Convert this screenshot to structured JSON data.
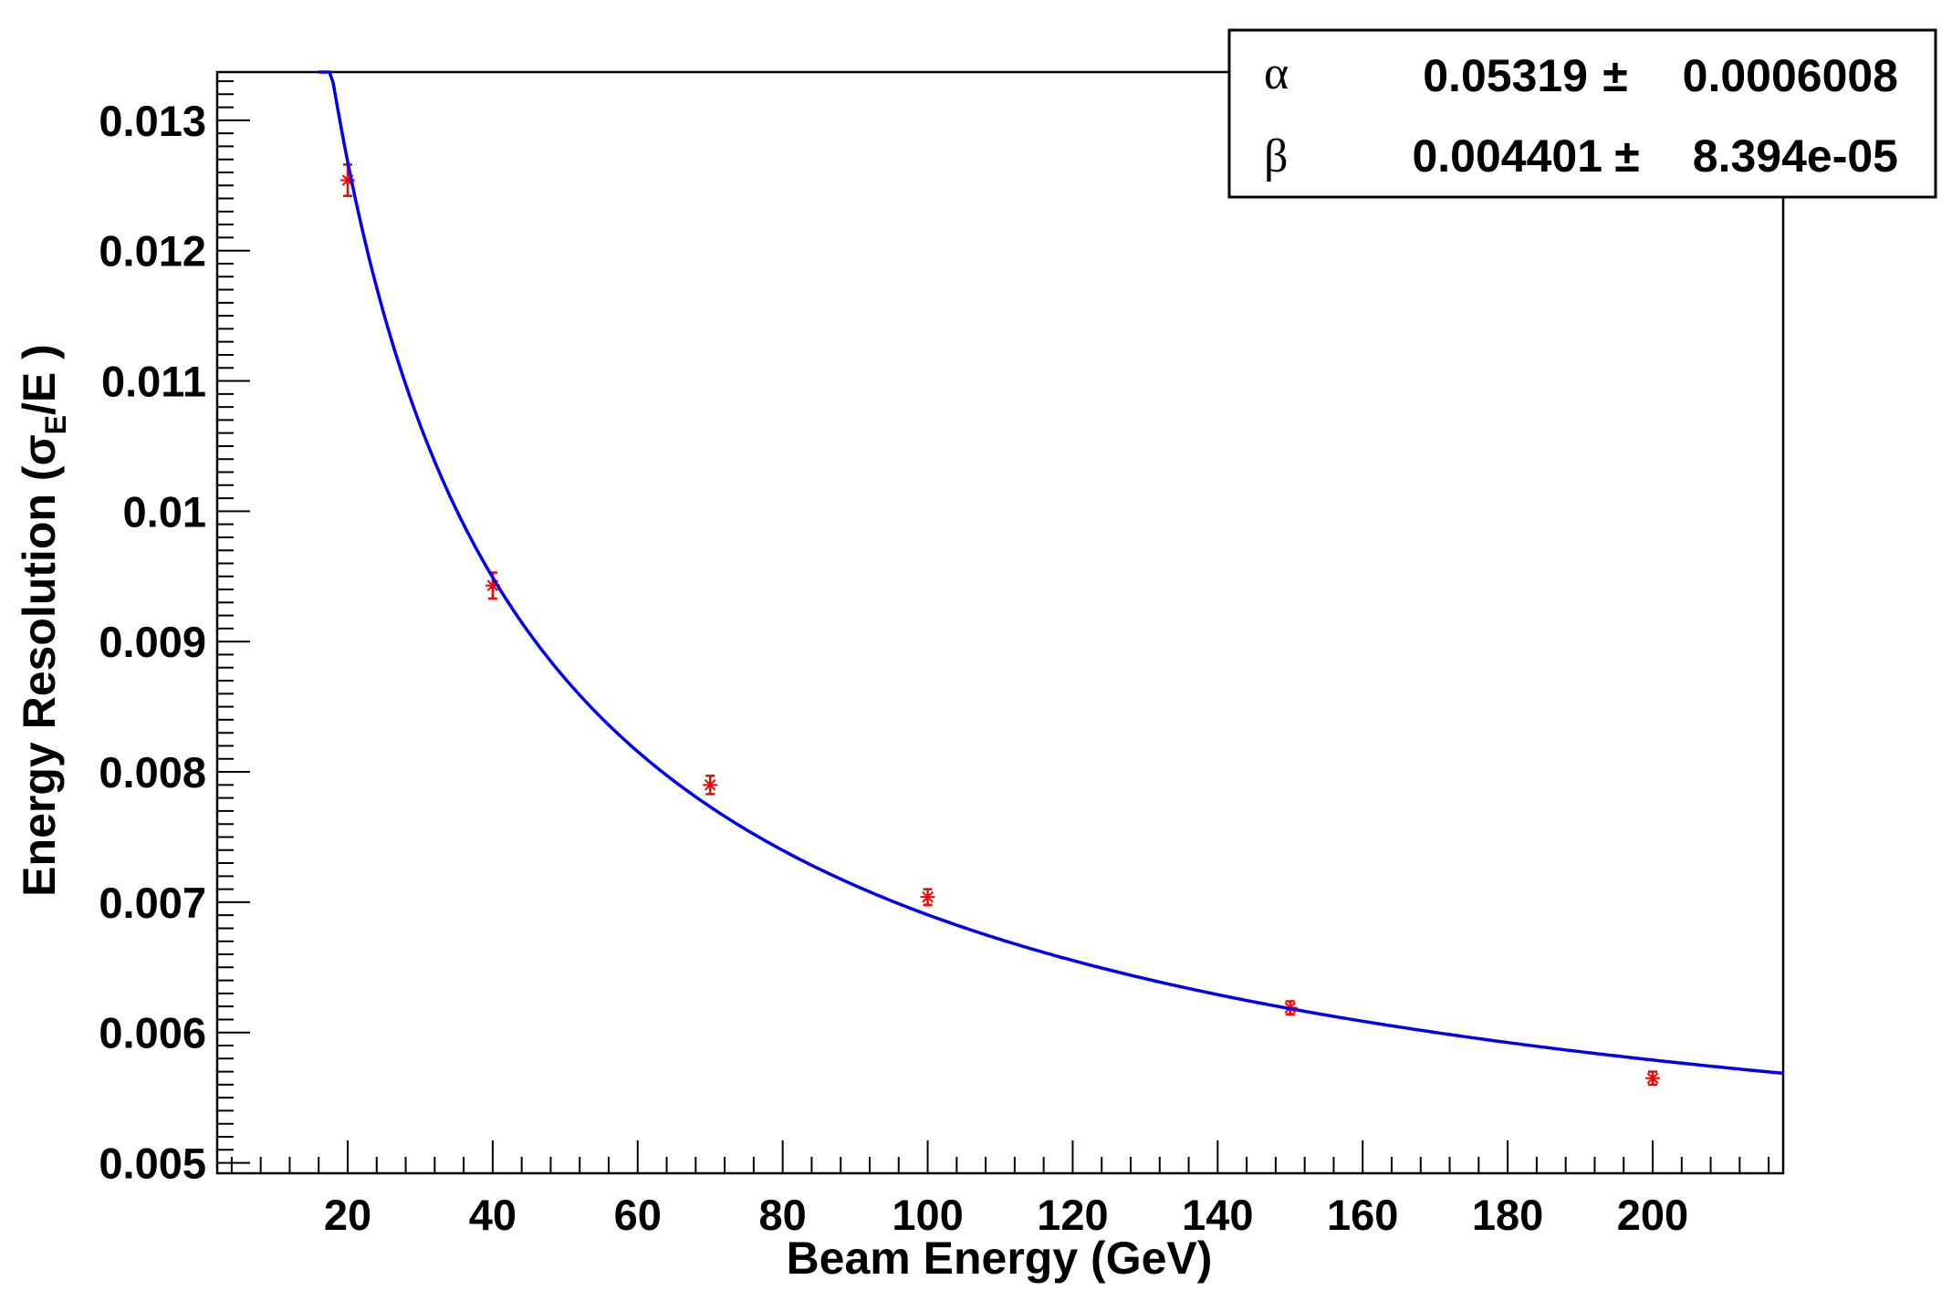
{
  "chart_data": {
    "type": "scatter",
    "xlabel": "Beam Energy (GeV)",
    "ylabel_parts": {
      "before": "Energy Resolution (",
      "sigma": "σ",
      "sub": "E",
      "after": "/E )"
    },
    "xlim": [
      2,
      218
    ],
    "ylim": [
      0.00492,
      0.01337
    ],
    "x_ticks": [
      20,
      40,
      60,
      80,
      100,
      120,
      140,
      160,
      180,
      200
    ],
    "x_tick_labels": [
      "20",
      "40",
      "60",
      "80",
      "100",
      "120",
      "140",
      "160",
      "180",
      "200"
    ],
    "y_ticks": [
      0.005,
      0.006,
      0.007,
      0.008,
      0.009,
      0.01,
      0.011,
      0.012,
      0.013
    ],
    "y_tick_labels": [
      "0.005",
      "0.006",
      "0.007",
      "0.008",
      "0.009",
      "0.01",
      "0.011",
      "0.012",
      "0.013"
    ],
    "grid": false,
    "series": [
      {
        "kind": "points",
        "color": "#ff0000",
        "marker": "asterisk",
        "x": [
          20,
          40,
          70,
          100,
          150,
          200
        ],
        "y": [
          0.01254,
          0.00943,
          0.0079,
          0.00704,
          0.00619,
          0.00565
        ],
        "yerr": [
          0.00012,
          0.0001,
          7e-05,
          6e-05,
          5e-05,
          5e-05
        ]
      },
      {
        "kind": "fit",
        "color": "#0000ee",
        "function": "sqrt((alpha/sqrt(x))^2 + beta^2)",
        "x_range": [
          16,
          218
        ]
      }
    ],
    "fit_parameters": [
      {
        "symbol": "α",
        "name": "alpha",
        "value": 0.05319,
        "value_text": "0.05319",
        "error_text": "0.0006008"
      },
      {
        "symbol": "β",
        "name": "beta",
        "value": 0.004401,
        "value_text": "0.004401",
        "error_text": "8.394e-05"
      }
    ],
    "pm_symbol": "±",
    "legend_placement": "top-right"
  }
}
